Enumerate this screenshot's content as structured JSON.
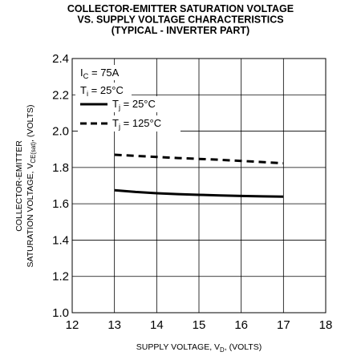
{
  "chart_data": {
    "type": "line",
    "title": [
      "COLLECTOR-EMITTER SATURATION VOLTAGE",
      "VS. SUPPLY VOLTAGE CHARACTERISTICS",
      "(TYPICAL - INVERTER PART)"
    ],
    "xlabel": {
      "main": "SUPPLY VOLTAGE, V",
      "sub": "D",
      "tail": ", (VOLTS)"
    },
    "ylabel": {
      "line1": "COLLECTOR-EMITTER",
      "line2_main": "SATURATION VOLTAGE, V",
      "line2_sub": "CE(sat)",
      "line2_tail": ", (VOLTS)"
    },
    "xlim": [
      12,
      18
    ],
    "ylim": [
      1.0,
      2.4
    ],
    "xticks": [
      "12",
      "13",
      "14",
      "15",
      "16",
      "17",
      "18"
    ],
    "yticks": [
      "1.0",
      "1.2",
      "1.4",
      "1.6",
      "1.8",
      "2.0",
      "2.2",
      "2.4"
    ],
    "grid": true,
    "conditions": [
      {
        "main": "I",
        "sub": "C",
        "tail": " = 75A"
      },
      {
        "main": "T",
        "sub": "j",
        "tail": " = 25°C"
      }
    ],
    "series": [
      {
        "name": {
          "main": "T",
          "sub": "j",
          "tail": " = 25°C"
        },
        "style": "solid",
        "x": [
          13,
          13.5,
          14,
          14.5,
          15,
          15.5,
          16,
          16.5,
          17
        ],
        "y": [
          1.675,
          1.665,
          1.658,
          1.653,
          1.649,
          1.646,
          1.643,
          1.641,
          1.639
        ]
      },
      {
        "name": {
          "main": "T",
          "sub": "j",
          "tail": " = 125°C"
        },
        "style": "dashed",
        "x": [
          13,
          13.5,
          14,
          14.5,
          15,
          15.5,
          16,
          16.5,
          17
        ],
        "y": [
          1.87,
          1.864,
          1.858,
          1.852,
          1.847,
          1.842,
          1.836,
          1.83,
          1.823
        ]
      }
    ],
    "colors": {
      "line": "#000000",
      "grid": "#000000",
      "background": "#ffffff"
    }
  }
}
